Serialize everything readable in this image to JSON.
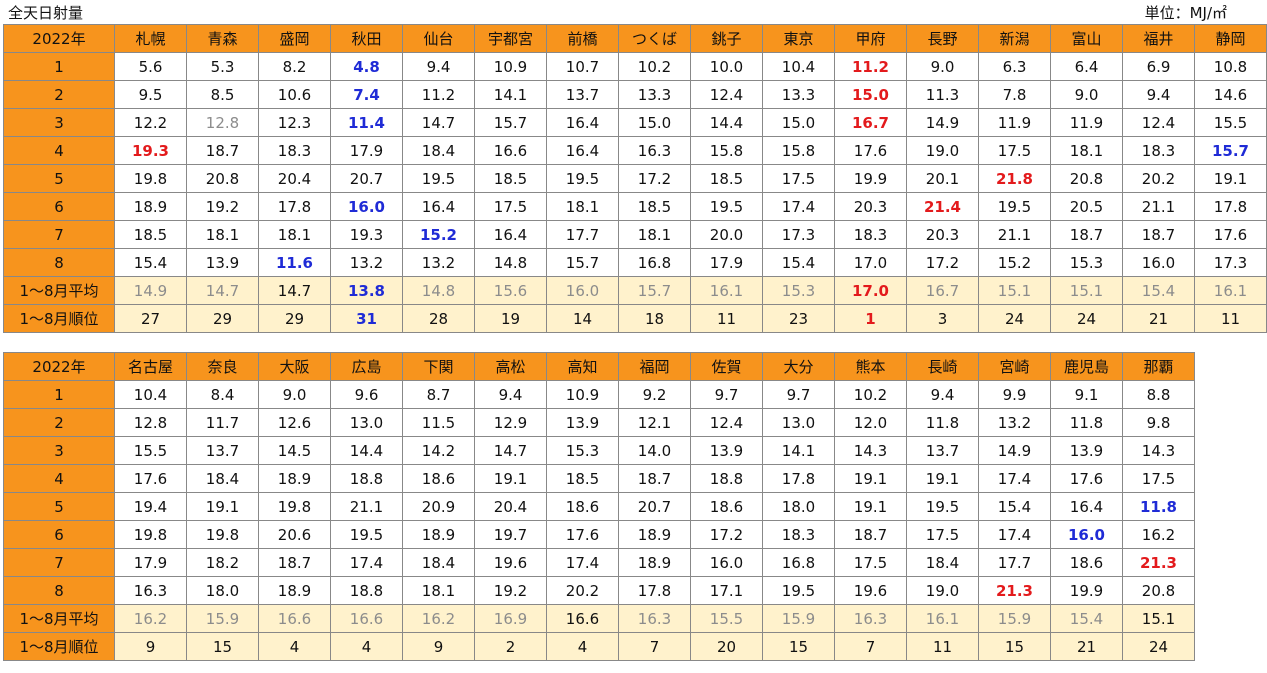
{
  "title": "全天日射量",
  "unit": "単位：MJ/㎡",
  "tables": [
    {
      "corner": "2022年",
      "stations": [
        "札幌",
        "青森",
        "盛岡",
        "秋田",
        "仙台",
        "宇都宮",
        "前橋",
        "つくば",
        "銚子",
        "東京",
        "甲府",
        "長野",
        "新潟",
        "富山",
        "福井",
        "静岡"
      ],
      "rows": [
        {
          "label": "1",
          "cells": [
            {
              "v": "5.6"
            },
            {
              "v": "5.3"
            },
            {
              "v": "8.2"
            },
            {
              "v": "4.8",
              "s": "blue"
            },
            {
              "v": "9.4"
            },
            {
              "v": "10.9"
            },
            {
              "v": "10.7"
            },
            {
              "v": "10.2"
            },
            {
              "v": "10.0"
            },
            {
              "v": "10.4"
            },
            {
              "v": "11.2",
              "s": "red"
            },
            {
              "v": "9.0"
            },
            {
              "v": "6.3"
            },
            {
              "v": "6.4"
            },
            {
              "v": "6.9"
            },
            {
              "v": "10.8"
            }
          ]
        },
        {
          "label": "2",
          "cells": [
            {
              "v": "9.5"
            },
            {
              "v": "8.5"
            },
            {
              "v": "10.6"
            },
            {
              "v": "7.4",
              "s": "blue"
            },
            {
              "v": "11.2"
            },
            {
              "v": "14.1"
            },
            {
              "v": "13.7"
            },
            {
              "v": "13.3"
            },
            {
              "v": "12.4"
            },
            {
              "v": "13.3"
            },
            {
              "v": "15.0",
              "s": "red"
            },
            {
              "v": "11.3"
            },
            {
              "v": "7.8"
            },
            {
              "v": "9.0"
            },
            {
              "v": "9.4"
            },
            {
              "v": "14.6"
            }
          ]
        },
        {
          "label": "3",
          "cells": [
            {
              "v": "12.2"
            },
            {
              "v": "12.8",
              "s": "gray"
            },
            {
              "v": "12.3"
            },
            {
              "v": "11.4",
              "s": "blue"
            },
            {
              "v": "14.7"
            },
            {
              "v": "15.7"
            },
            {
              "v": "16.4"
            },
            {
              "v": "15.0"
            },
            {
              "v": "14.4"
            },
            {
              "v": "15.0"
            },
            {
              "v": "16.7",
              "s": "red"
            },
            {
              "v": "14.9"
            },
            {
              "v": "11.9"
            },
            {
              "v": "11.9"
            },
            {
              "v": "12.4"
            },
            {
              "v": "15.5"
            }
          ]
        },
        {
          "label": "4",
          "cells": [
            {
              "v": "19.3",
              "s": "red"
            },
            {
              "v": "18.7"
            },
            {
              "v": "18.3"
            },
            {
              "v": "17.9"
            },
            {
              "v": "18.4"
            },
            {
              "v": "16.6"
            },
            {
              "v": "16.4"
            },
            {
              "v": "16.3"
            },
            {
              "v": "15.8"
            },
            {
              "v": "15.8"
            },
            {
              "v": "17.6"
            },
            {
              "v": "19.0"
            },
            {
              "v": "17.5"
            },
            {
              "v": "18.1"
            },
            {
              "v": "18.3"
            },
            {
              "v": "15.7",
              "s": "blue"
            }
          ]
        },
        {
          "label": "5",
          "cells": [
            {
              "v": "19.8"
            },
            {
              "v": "20.8"
            },
            {
              "v": "20.4"
            },
            {
              "v": "20.7"
            },
            {
              "v": "19.5"
            },
            {
              "v": "18.5"
            },
            {
              "v": "19.5"
            },
            {
              "v": "17.2"
            },
            {
              "v": "18.5"
            },
            {
              "v": "17.5"
            },
            {
              "v": "19.9"
            },
            {
              "v": "20.1"
            },
            {
              "v": "21.8",
              "s": "red"
            },
            {
              "v": "20.8"
            },
            {
              "v": "20.2"
            },
            {
              "v": "19.1"
            }
          ]
        },
        {
          "label": "6",
          "cells": [
            {
              "v": "18.9"
            },
            {
              "v": "19.2"
            },
            {
              "v": "17.8"
            },
            {
              "v": "16.0",
              "s": "blue"
            },
            {
              "v": "16.4"
            },
            {
              "v": "17.5"
            },
            {
              "v": "18.1"
            },
            {
              "v": "18.5"
            },
            {
              "v": "19.5"
            },
            {
              "v": "17.4"
            },
            {
              "v": "20.3"
            },
            {
              "v": "21.4",
              "s": "red"
            },
            {
              "v": "19.5"
            },
            {
              "v": "20.5"
            },
            {
              "v": "21.1"
            },
            {
              "v": "17.8"
            }
          ]
        },
        {
          "label": "7",
          "cells": [
            {
              "v": "18.5"
            },
            {
              "v": "18.1"
            },
            {
              "v": "18.1"
            },
            {
              "v": "19.3"
            },
            {
              "v": "15.2",
              "s": "blue"
            },
            {
              "v": "16.4"
            },
            {
              "v": "17.7"
            },
            {
              "v": "18.1"
            },
            {
              "v": "20.0"
            },
            {
              "v": "17.3"
            },
            {
              "v": "18.3"
            },
            {
              "v": "20.3"
            },
            {
              "v": "21.1"
            },
            {
              "v": "18.7"
            },
            {
              "v": "18.7"
            },
            {
              "v": "17.6"
            }
          ]
        },
        {
          "label": "8",
          "cells": [
            {
              "v": "15.4"
            },
            {
              "v": "13.9"
            },
            {
              "v": "11.6",
              "s": "blue"
            },
            {
              "v": "13.2"
            },
            {
              "v": "13.2"
            },
            {
              "v": "14.8"
            },
            {
              "v": "15.7"
            },
            {
              "v": "16.8"
            },
            {
              "v": "17.9"
            },
            {
              "v": "15.4"
            },
            {
              "v": "17.0"
            },
            {
              "v": "17.2"
            },
            {
              "v": "15.2"
            },
            {
              "v": "15.3"
            },
            {
              "v": "16.0"
            },
            {
              "v": "17.3"
            }
          ]
        }
      ],
      "avg": {
        "label": "1～8月平均",
        "cells": [
          {
            "v": "14.9"
          },
          {
            "v": "14.7"
          },
          {
            "v": "14.7",
            "s": "dark"
          },
          {
            "v": "13.8",
            "s": "blue"
          },
          {
            "v": "14.8"
          },
          {
            "v": "15.6"
          },
          {
            "v": "16.0"
          },
          {
            "v": "15.7"
          },
          {
            "v": "16.1"
          },
          {
            "v": "15.3"
          },
          {
            "v": "17.0",
            "s": "red"
          },
          {
            "v": "16.7"
          },
          {
            "v": "15.1"
          },
          {
            "v": "15.1"
          },
          {
            "v": "15.4"
          },
          {
            "v": "16.1"
          }
        ]
      },
      "rank": {
        "label": "1～8月順位",
        "cells": [
          {
            "v": "27"
          },
          {
            "v": "29"
          },
          {
            "v": "29"
          },
          {
            "v": "31",
            "s": "blue"
          },
          {
            "v": "28"
          },
          {
            "v": "19"
          },
          {
            "v": "14"
          },
          {
            "v": "18"
          },
          {
            "v": "11"
          },
          {
            "v": "23"
          },
          {
            "v": "1",
            "s": "red"
          },
          {
            "v": "3"
          },
          {
            "v": "24"
          },
          {
            "v": "24"
          },
          {
            "v": "21"
          },
          {
            "v": "11"
          }
        ]
      }
    },
    {
      "corner": "2022年",
      "stations": [
        "名古屋",
        "奈良",
        "大阪",
        "広島",
        "下関",
        "高松",
        "高知",
        "福岡",
        "佐賀",
        "大分",
        "熊本",
        "長崎",
        "宮崎",
        "鹿児島",
        "那覇"
      ],
      "rows": [
        {
          "label": "1",
          "cells": [
            {
              "v": "10.4"
            },
            {
              "v": "8.4"
            },
            {
              "v": "9.0"
            },
            {
              "v": "9.6"
            },
            {
              "v": "8.7"
            },
            {
              "v": "9.4"
            },
            {
              "v": "10.9"
            },
            {
              "v": "9.2"
            },
            {
              "v": "9.7"
            },
            {
              "v": "9.7"
            },
            {
              "v": "10.2"
            },
            {
              "v": "9.4"
            },
            {
              "v": "9.9"
            },
            {
              "v": "9.1"
            },
            {
              "v": "8.8"
            }
          ]
        },
        {
          "label": "2",
          "cells": [
            {
              "v": "12.8"
            },
            {
              "v": "11.7"
            },
            {
              "v": "12.6"
            },
            {
              "v": "13.0"
            },
            {
              "v": "11.5"
            },
            {
              "v": "12.9"
            },
            {
              "v": "13.9"
            },
            {
              "v": "12.1"
            },
            {
              "v": "12.4"
            },
            {
              "v": "13.0"
            },
            {
              "v": "12.0"
            },
            {
              "v": "11.8"
            },
            {
              "v": "13.2"
            },
            {
              "v": "11.8"
            },
            {
              "v": "9.8"
            }
          ]
        },
        {
          "label": "3",
          "cells": [
            {
              "v": "15.5"
            },
            {
              "v": "13.7"
            },
            {
              "v": "14.5"
            },
            {
              "v": "14.4"
            },
            {
              "v": "14.2"
            },
            {
              "v": "14.7"
            },
            {
              "v": "15.3"
            },
            {
              "v": "14.0"
            },
            {
              "v": "13.9"
            },
            {
              "v": "14.1"
            },
            {
              "v": "14.3"
            },
            {
              "v": "13.7"
            },
            {
              "v": "14.9"
            },
            {
              "v": "13.9"
            },
            {
              "v": "14.3"
            }
          ]
        },
        {
          "label": "4",
          "cells": [
            {
              "v": "17.6"
            },
            {
              "v": "18.4"
            },
            {
              "v": "18.9"
            },
            {
              "v": "18.8"
            },
            {
              "v": "18.6"
            },
            {
              "v": "19.1"
            },
            {
              "v": "18.5"
            },
            {
              "v": "18.7"
            },
            {
              "v": "18.8"
            },
            {
              "v": "17.8"
            },
            {
              "v": "19.1"
            },
            {
              "v": "19.1"
            },
            {
              "v": "17.4"
            },
            {
              "v": "17.6"
            },
            {
              "v": "17.5"
            }
          ]
        },
        {
          "label": "5",
          "cells": [
            {
              "v": "19.4"
            },
            {
              "v": "19.1"
            },
            {
              "v": "19.8"
            },
            {
              "v": "21.1"
            },
            {
              "v": "20.9"
            },
            {
              "v": "20.4"
            },
            {
              "v": "18.6"
            },
            {
              "v": "20.7"
            },
            {
              "v": "18.6"
            },
            {
              "v": "18.0"
            },
            {
              "v": "19.1"
            },
            {
              "v": "19.5"
            },
            {
              "v": "15.4"
            },
            {
              "v": "16.4"
            },
            {
              "v": "11.8",
              "s": "blue"
            }
          ]
        },
        {
          "label": "6",
          "cells": [
            {
              "v": "19.8"
            },
            {
              "v": "19.8"
            },
            {
              "v": "20.6"
            },
            {
              "v": "19.5"
            },
            {
              "v": "18.9"
            },
            {
              "v": "19.7"
            },
            {
              "v": "17.6"
            },
            {
              "v": "18.9"
            },
            {
              "v": "17.2"
            },
            {
              "v": "18.3"
            },
            {
              "v": "18.7"
            },
            {
              "v": "17.5"
            },
            {
              "v": "17.4"
            },
            {
              "v": "16.0",
              "s": "blue"
            },
            {
              "v": "16.2"
            }
          ]
        },
        {
          "label": "7",
          "cells": [
            {
              "v": "17.9"
            },
            {
              "v": "18.2"
            },
            {
              "v": "18.7"
            },
            {
              "v": "17.4"
            },
            {
              "v": "18.4"
            },
            {
              "v": "19.6"
            },
            {
              "v": "17.4"
            },
            {
              "v": "18.9"
            },
            {
              "v": "16.0"
            },
            {
              "v": "16.8"
            },
            {
              "v": "17.5"
            },
            {
              "v": "18.4"
            },
            {
              "v": "17.7"
            },
            {
              "v": "18.6"
            },
            {
              "v": "21.3",
              "s": "red"
            }
          ]
        },
        {
          "label": "8",
          "cells": [
            {
              "v": "16.3"
            },
            {
              "v": "18.0"
            },
            {
              "v": "18.9"
            },
            {
              "v": "18.8"
            },
            {
              "v": "18.1"
            },
            {
              "v": "19.2"
            },
            {
              "v": "20.2"
            },
            {
              "v": "17.8"
            },
            {
              "v": "17.1"
            },
            {
              "v": "19.5"
            },
            {
              "v": "19.6"
            },
            {
              "v": "19.0"
            },
            {
              "v": "21.3",
              "s": "red"
            },
            {
              "v": "19.9"
            },
            {
              "v": "20.8"
            }
          ]
        }
      ],
      "avg": {
        "label": "1～8月平均",
        "cells": [
          {
            "v": "16.2"
          },
          {
            "v": "15.9"
          },
          {
            "v": "16.6"
          },
          {
            "v": "16.6"
          },
          {
            "v": "16.2"
          },
          {
            "v": "16.9"
          },
          {
            "v": "16.6",
            "s": "dark"
          },
          {
            "v": "16.3"
          },
          {
            "v": "15.5"
          },
          {
            "v": "15.9"
          },
          {
            "v": "16.3"
          },
          {
            "v": "16.1"
          },
          {
            "v": "15.9"
          },
          {
            "v": "15.4"
          },
          {
            "v": "15.1",
            "s": "dark"
          }
        ]
      },
      "rank": {
        "label": "1～8月順位",
        "cells": [
          {
            "v": "9"
          },
          {
            "v": "15"
          },
          {
            "v": "4"
          },
          {
            "v": "4"
          },
          {
            "v": "9"
          },
          {
            "v": "2"
          },
          {
            "v": "4"
          },
          {
            "v": "7"
          },
          {
            "v": "20"
          },
          {
            "v": "15"
          },
          {
            "v": "7"
          },
          {
            "v": "11"
          },
          {
            "v": "15"
          },
          {
            "v": "21"
          },
          {
            "v": "24"
          }
        ]
      }
    }
  ]
}
